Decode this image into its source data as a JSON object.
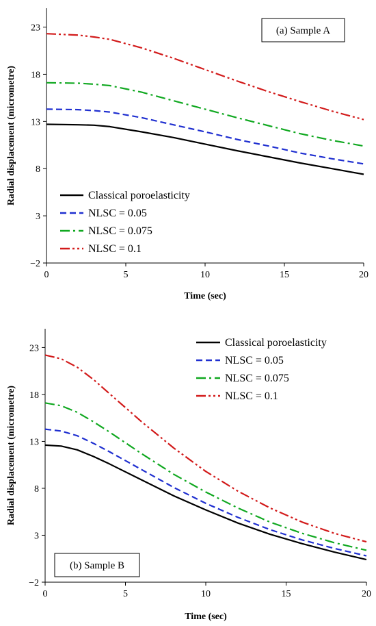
{
  "chart_data": [
    {
      "type": "line",
      "panel_label": "(a) Sample A",
      "xlabel": "Time (sec)",
      "ylabel": "Radial displacement (micrometre)",
      "xlim": [
        0,
        20
      ],
      "ylim": [
        -2,
        25
      ],
      "xticks": [
        0,
        5,
        10,
        15,
        20
      ],
      "yticks": [
        -2,
        3,
        8,
        13,
        18,
        23
      ],
      "legend_position": "bottom-left",
      "series": [
        {
          "name": "Classical poroelasticity",
          "color": "#000000",
          "dash": "solid",
          "x": [
            0,
            2,
            3,
            4,
            6,
            8,
            10,
            12,
            14,
            16,
            18,
            20
          ],
          "y": [
            12.7,
            12.65,
            12.6,
            12.45,
            11.9,
            11.3,
            10.6,
            9.9,
            9.25,
            8.6,
            8.0,
            7.4
          ]
        },
        {
          "name": "NLSC = 0.05",
          "color": "#1f2fd0",
          "dash": "dash",
          "x": [
            0,
            2,
            3,
            4,
            6,
            8,
            10,
            12,
            14,
            16,
            18,
            20
          ],
          "y": [
            14.3,
            14.25,
            14.15,
            14.0,
            13.4,
            12.65,
            11.9,
            11.1,
            10.4,
            9.65,
            9.05,
            8.5
          ]
        },
        {
          "name": "NLSC = 0.075",
          "color": "#10a820",
          "dash": "dashdot",
          "x": [
            0,
            2,
            3,
            4,
            6,
            8,
            10,
            12,
            14,
            16,
            18,
            20
          ],
          "y": [
            17.1,
            17.05,
            16.95,
            16.8,
            16.1,
            15.2,
            14.3,
            13.4,
            12.55,
            11.7,
            11.0,
            10.4
          ]
        },
        {
          "name": "NLSC = 0.1",
          "color": "#d21a1a",
          "dash": "dashdotdot",
          "x": [
            0,
            2,
            3,
            4,
            6,
            8,
            10,
            12,
            14,
            16,
            18,
            20
          ],
          "y": [
            22.3,
            22.15,
            21.95,
            21.7,
            20.8,
            19.7,
            18.5,
            17.3,
            16.15,
            15.1,
            14.1,
            13.2
          ]
        }
      ]
    },
    {
      "type": "line",
      "panel_label": "(b) Sample B",
      "xlabel": "Time (sec)",
      "ylabel": "Radial displacement (micrometre)",
      "xlim": [
        0,
        20
      ],
      "ylim": [
        -2,
        25
      ],
      "xticks": [
        0,
        5,
        10,
        15,
        20
      ],
      "yticks": [
        -2,
        3,
        8,
        13,
        18,
        23
      ],
      "legend_position": "top-right",
      "series": [
        {
          "name": "Classical poroelasticity",
          "color": "#000000",
          "dash": "solid",
          "x": [
            0,
            1,
            2,
            3,
            4,
            6,
            8,
            10,
            12,
            14,
            16,
            18,
            20
          ],
          "y": [
            12.6,
            12.5,
            12.1,
            11.4,
            10.6,
            8.9,
            7.2,
            5.7,
            4.3,
            3.1,
            2.1,
            1.2,
            0.4
          ]
        },
        {
          "name": "NLSC = 0.05",
          "color": "#1f2fd0",
          "dash": "dash",
          "x": [
            0,
            1,
            2,
            3,
            4,
            6,
            8,
            10,
            12,
            14,
            16,
            18,
            20
          ],
          "y": [
            14.3,
            14.1,
            13.6,
            12.8,
            11.9,
            10.0,
            8.1,
            6.4,
            4.9,
            3.6,
            2.5,
            1.6,
            0.8
          ]
        },
        {
          "name": "NLSC = 0.075",
          "color": "#10a820",
          "dash": "dashdot",
          "x": [
            0,
            1,
            2,
            3,
            4,
            6,
            8,
            10,
            12,
            14,
            16,
            18,
            20
          ],
          "y": [
            17.1,
            16.8,
            16.1,
            15.1,
            14.0,
            11.7,
            9.5,
            7.6,
            5.9,
            4.4,
            3.2,
            2.2,
            1.4
          ]
        },
        {
          "name": "NLSC = 0.1",
          "color": "#d21a1a",
          "dash": "dashdotdot",
          "x": [
            0,
            1,
            2,
            3,
            4,
            6,
            8,
            10,
            12,
            14,
            16,
            18,
            20
          ],
          "y": [
            22.2,
            21.8,
            20.9,
            19.6,
            18.1,
            15.1,
            12.3,
            9.8,
            7.7,
            5.9,
            4.4,
            3.2,
            2.3
          ]
        }
      ]
    }
  ]
}
